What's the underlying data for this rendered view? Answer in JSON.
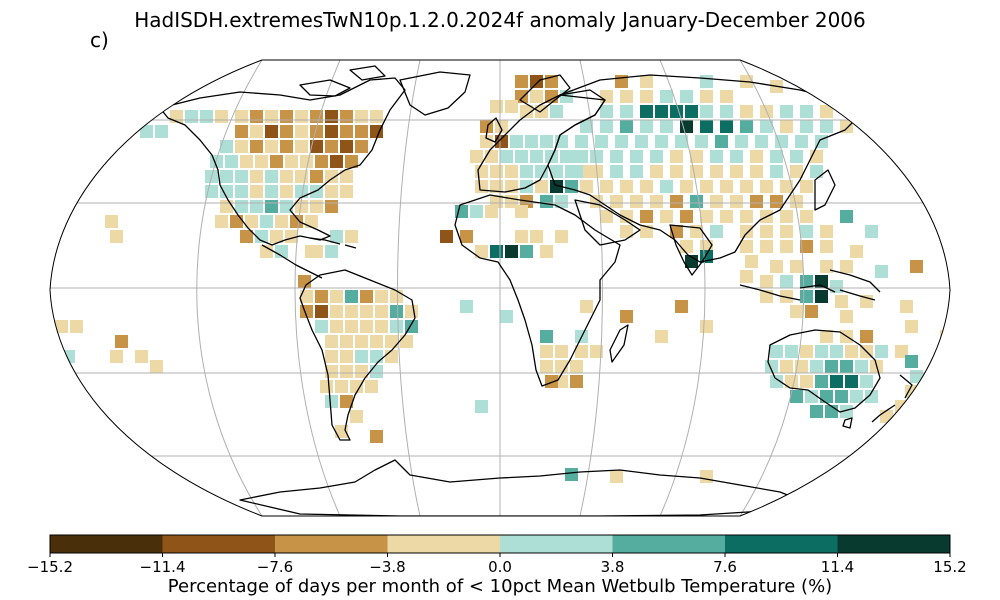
{
  "title": "HadISDH.extremesTwN10p.1.2.0.2024f anomaly January-December 2006",
  "panel_label": "c)",
  "colorbar": {
    "label": "Percentage of days per month of < 10pct Mean Wetbulb Temperature (%)",
    "ticks": [
      "−15.2",
      "−11.4",
      "−7.6",
      "−3.8",
      "0.0",
      "3.8",
      "7.6",
      "11.4",
      "15.2"
    ],
    "colors": [
      "#4a2f0b",
      "#8f5417",
      "#c69347",
      "#ecd9a5",
      "#aedfd7",
      "#55ad9f",
      "#0c6e63",
      "#093a30"
    ]
  },
  "map": {
    "projection": "Robinson",
    "gridlines": true,
    "coastlines": true
  }
}
